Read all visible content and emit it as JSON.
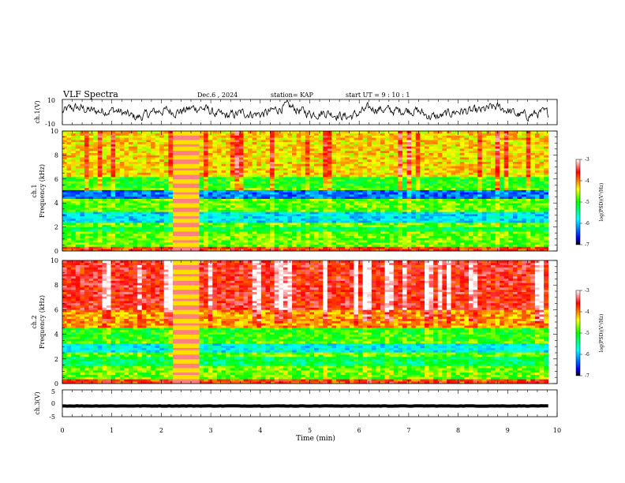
{
  "header": {
    "title": "VLF Spectra",
    "date": "Dec.6 , 2024",
    "station": "station= KAP",
    "start": "start UT = 9 : 10 : 1"
  },
  "chart_data": [
    {
      "type": "line",
      "name": "ch1-waveform",
      "ylabel": "ch.1(V)",
      "ylim": [
        -10,
        10
      ],
      "yticks": [
        "10",
        "-10"
      ],
      "xlim": [
        0,
        10
      ]
    },
    {
      "type": "heatmap",
      "name": "ch1-spectrogram",
      "ylabel_top": "ch.1",
      "ylabel": "Frequency (kHz)",
      "ylim": [
        0,
        10
      ],
      "yticks": [
        "0",
        "2",
        "4",
        "6",
        "8",
        "10"
      ],
      "xlim": [
        0,
        10
      ],
      "colorbar": {
        "label": "log(PSD)(V²/Hz)",
        "range": [
          -7,
          -3
        ],
        "ticks": [
          "-3",
          "-4",
          "-5",
          "-6",
          "-7"
        ],
        "colors": [
          "#000000",
          "#0000ff",
          "#00ffff",
          "#00ff00",
          "#ffff00",
          "#ff0000",
          "#ffffff"
        ]
      }
    },
    {
      "type": "heatmap",
      "name": "ch2-spectrogram",
      "ylabel_top": "ch.2",
      "ylabel": "Frequency (kHz)",
      "ylim": [
        0,
        10
      ],
      "yticks": [
        "0",
        "2",
        "4",
        "6",
        "8",
        "10"
      ],
      "xlim": [
        0,
        10
      ],
      "colorbar": {
        "label": "log(PSD)(V²/Hz)",
        "range": [
          -7,
          -3
        ],
        "ticks": [
          "-3",
          "-4",
          "-5",
          "-6",
          "-7"
        ],
        "colors": [
          "#000000",
          "#0000ff",
          "#00ffff",
          "#00ff00",
          "#ffff00",
          "#ff0000",
          "#ffffff"
        ]
      }
    },
    {
      "type": "line",
      "name": "ch3-waveform",
      "ylabel": "ch.3(V)",
      "ylim": [
        -5,
        5
      ],
      "yticks": [
        "5",
        "0",
        "-5"
      ],
      "xlim": [
        0,
        10
      ],
      "xlabel": "Time (min)",
      "xticks": [
        "0",
        "1",
        "2",
        "3",
        "4",
        "5",
        "6",
        "7",
        "8",
        "9",
        "10"
      ]
    }
  ]
}
